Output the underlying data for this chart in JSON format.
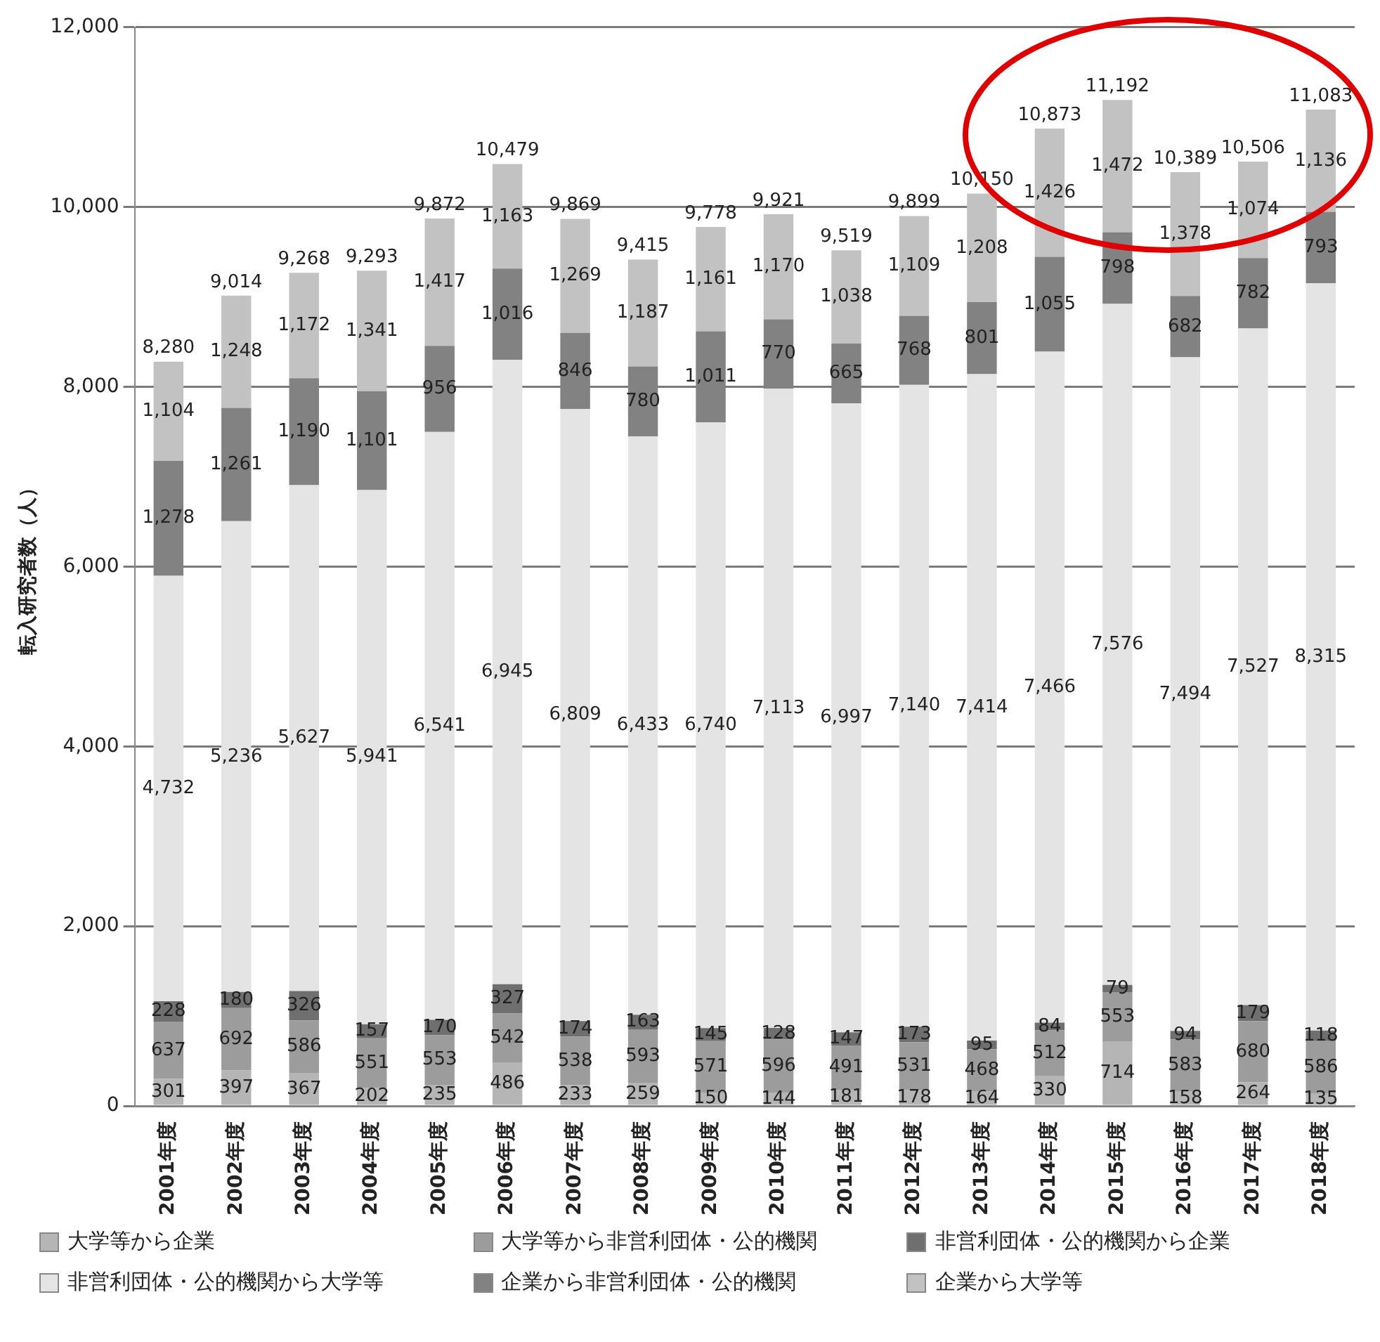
{
  "chart_data": {
    "type": "bar",
    "stacked": true,
    "ylabel": "転入研究者数（人）",
    "categories": [
      "2001年度",
      "2002年度",
      "2003年度",
      "2004年度",
      "2005年度",
      "2006年度",
      "2007年度",
      "2008年度",
      "2009年度",
      "2010年度",
      "2011年度",
      "2012年度",
      "2013年度",
      "2014年度",
      "2015年度",
      "2016年度",
      "2017年度",
      "2018年度"
    ],
    "series": [
      {
        "name": "大学等から企業",
        "color": "#b5b5b5",
        "values": [
          301,
          397,
          367,
          202,
          235,
          486,
          233,
          259,
          150,
          144,
          181,
          178,
          164,
          330,
          714,
          158,
          264,
          135
        ],
        "value_labels": [
          "301",
          "397",
          "367",
          "202",
          "235",
          "486",
          "233",
          "259",
          "150",
          "144",
          "181",
          "178",
          "164",
          "330",
          "714",
          "158",
          "264",
          "135"
        ]
      },
      {
        "name": "大学等から非営利団体・公的機関",
        "color": "#9c9c9c",
        "values": [
          637,
          692,
          586,
          551,
          553,
          542,
          538,
          593,
          571,
          596,
          491,
          531,
          468,
          512,
          553,
          583,
          680,
          586
        ],
        "value_labels": [
          "637",
          "692",
          "586",
          "551",
          "553",
          "542",
          "538",
          "593",
          "571",
          "596",
          "491",
          "531",
          "468",
          "512",
          "553",
          "583",
          "680",
          "586"
        ]
      },
      {
        "name": "非営利団体・公的機関から企業",
        "color": "#6f6f6f",
        "values": [
          228,
          180,
          326,
          157,
          170,
          327,
          174,
          163,
          145,
          128,
          147,
          173,
          95,
          84,
          79,
          94,
          179,
          118
        ],
        "value_labels": [
          "228",
          "180",
          "326",
          "157",
          "170",
          "327",
          "174",
          "163",
          "145",
          "128",
          "147",
          "173",
          "95",
          "84",
          "79",
          "94",
          "179",
          "118"
        ]
      },
      {
        "name": "非営利団体・公的機関から大学等",
        "color": "#e4e4e4",
        "values": [
          4732,
          5236,
          5627,
          5941,
          6541,
          6945,
          6809,
          6433,
          6740,
          7113,
          6997,
          7140,
          7414,
          7466,
          7576,
          7494,
          7527,
          8315
        ],
        "value_labels": [
          "4,732",
          "5,236",
          "5,627",
          "5,941",
          "6,541",
          "6,945",
          "6,809",
          "6,433",
          "6,740",
          "7,113",
          "6,997",
          "7,140",
          "7,414",
          "7,466",
          "7,576",
          "7,494",
          "7,527",
          "8,315"
        ]
      },
      {
        "name": "企業から非営利団体・公的機関",
        "color": "#828282",
        "values": [
          1278,
          1261,
          1190,
          1101,
          956,
          1016,
          846,
          780,
          1011,
          770,
          665,
          768,
          801,
          1055,
          798,
          682,
          782,
          793
        ],
        "value_labels": [
          "1,278",
          "1,261",
          "1,190",
          "1,101",
          "956",
          "1,016",
          "846",
          "780",
          "1,011",
          "770",
          "665",
          "768",
          "801",
          "1,055",
          "798",
          "682",
          "782",
          "793"
        ]
      },
      {
        "name": "企業から大学等",
        "color": "#c2c2c2",
        "values": [
          1104,
          1248,
          1172,
          1341,
          1417,
          1163,
          1269,
          1187,
          1161,
          1170,
          1038,
          1109,
          1208,
          1426,
          1472,
          1378,
          1074,
          1136
        ],
        "value_labels": [
          "1,104",
          "1,248",
          "1,172",
          "1,341",
          "1,417",
          "1,163",
          "1,269",
          "1,187",
          "1,161",
          "1,170",
          "1,038",
          "1,109",
          "1,208",
          "1,426",
          "1,472",
          "1,378",
          "1,074",
          "1,136"
        ]
      }
    ],
    "totals": [
      "8,280",
      "9,014",
      "9,268",
      "9,293",
      "9,872",
      "10,479",
      "9,869",
      "9,415",
      "9,778",
      "9,921",
      "9,519",
      "9,899",
      "10,150",
      "10,873",
      "11,192",
      "10,389",
      "10,506",
      "11,083"
    ],
    "ylim": [
      0,
      12000
    ],
    "yticks": [
      {
        "value": 0,
        "label": "0"
      },
      {
        "value": 2000,
        "label": "2,000"
      },
      {
        "value": 4000,
        "label": "4,000"
      },
      {
        "value": 6000,
        "label": "6,000"
      },
      {
        "value": 8000,
        "label": "8,000"
      },
      {
        "value": 10000,
        "label": "10,000"
      },
      {
        "value": 12000,
        "label": "12,000"
      }
    ],
    "grid": "y",
    "legend": "bottom"
  }
}
